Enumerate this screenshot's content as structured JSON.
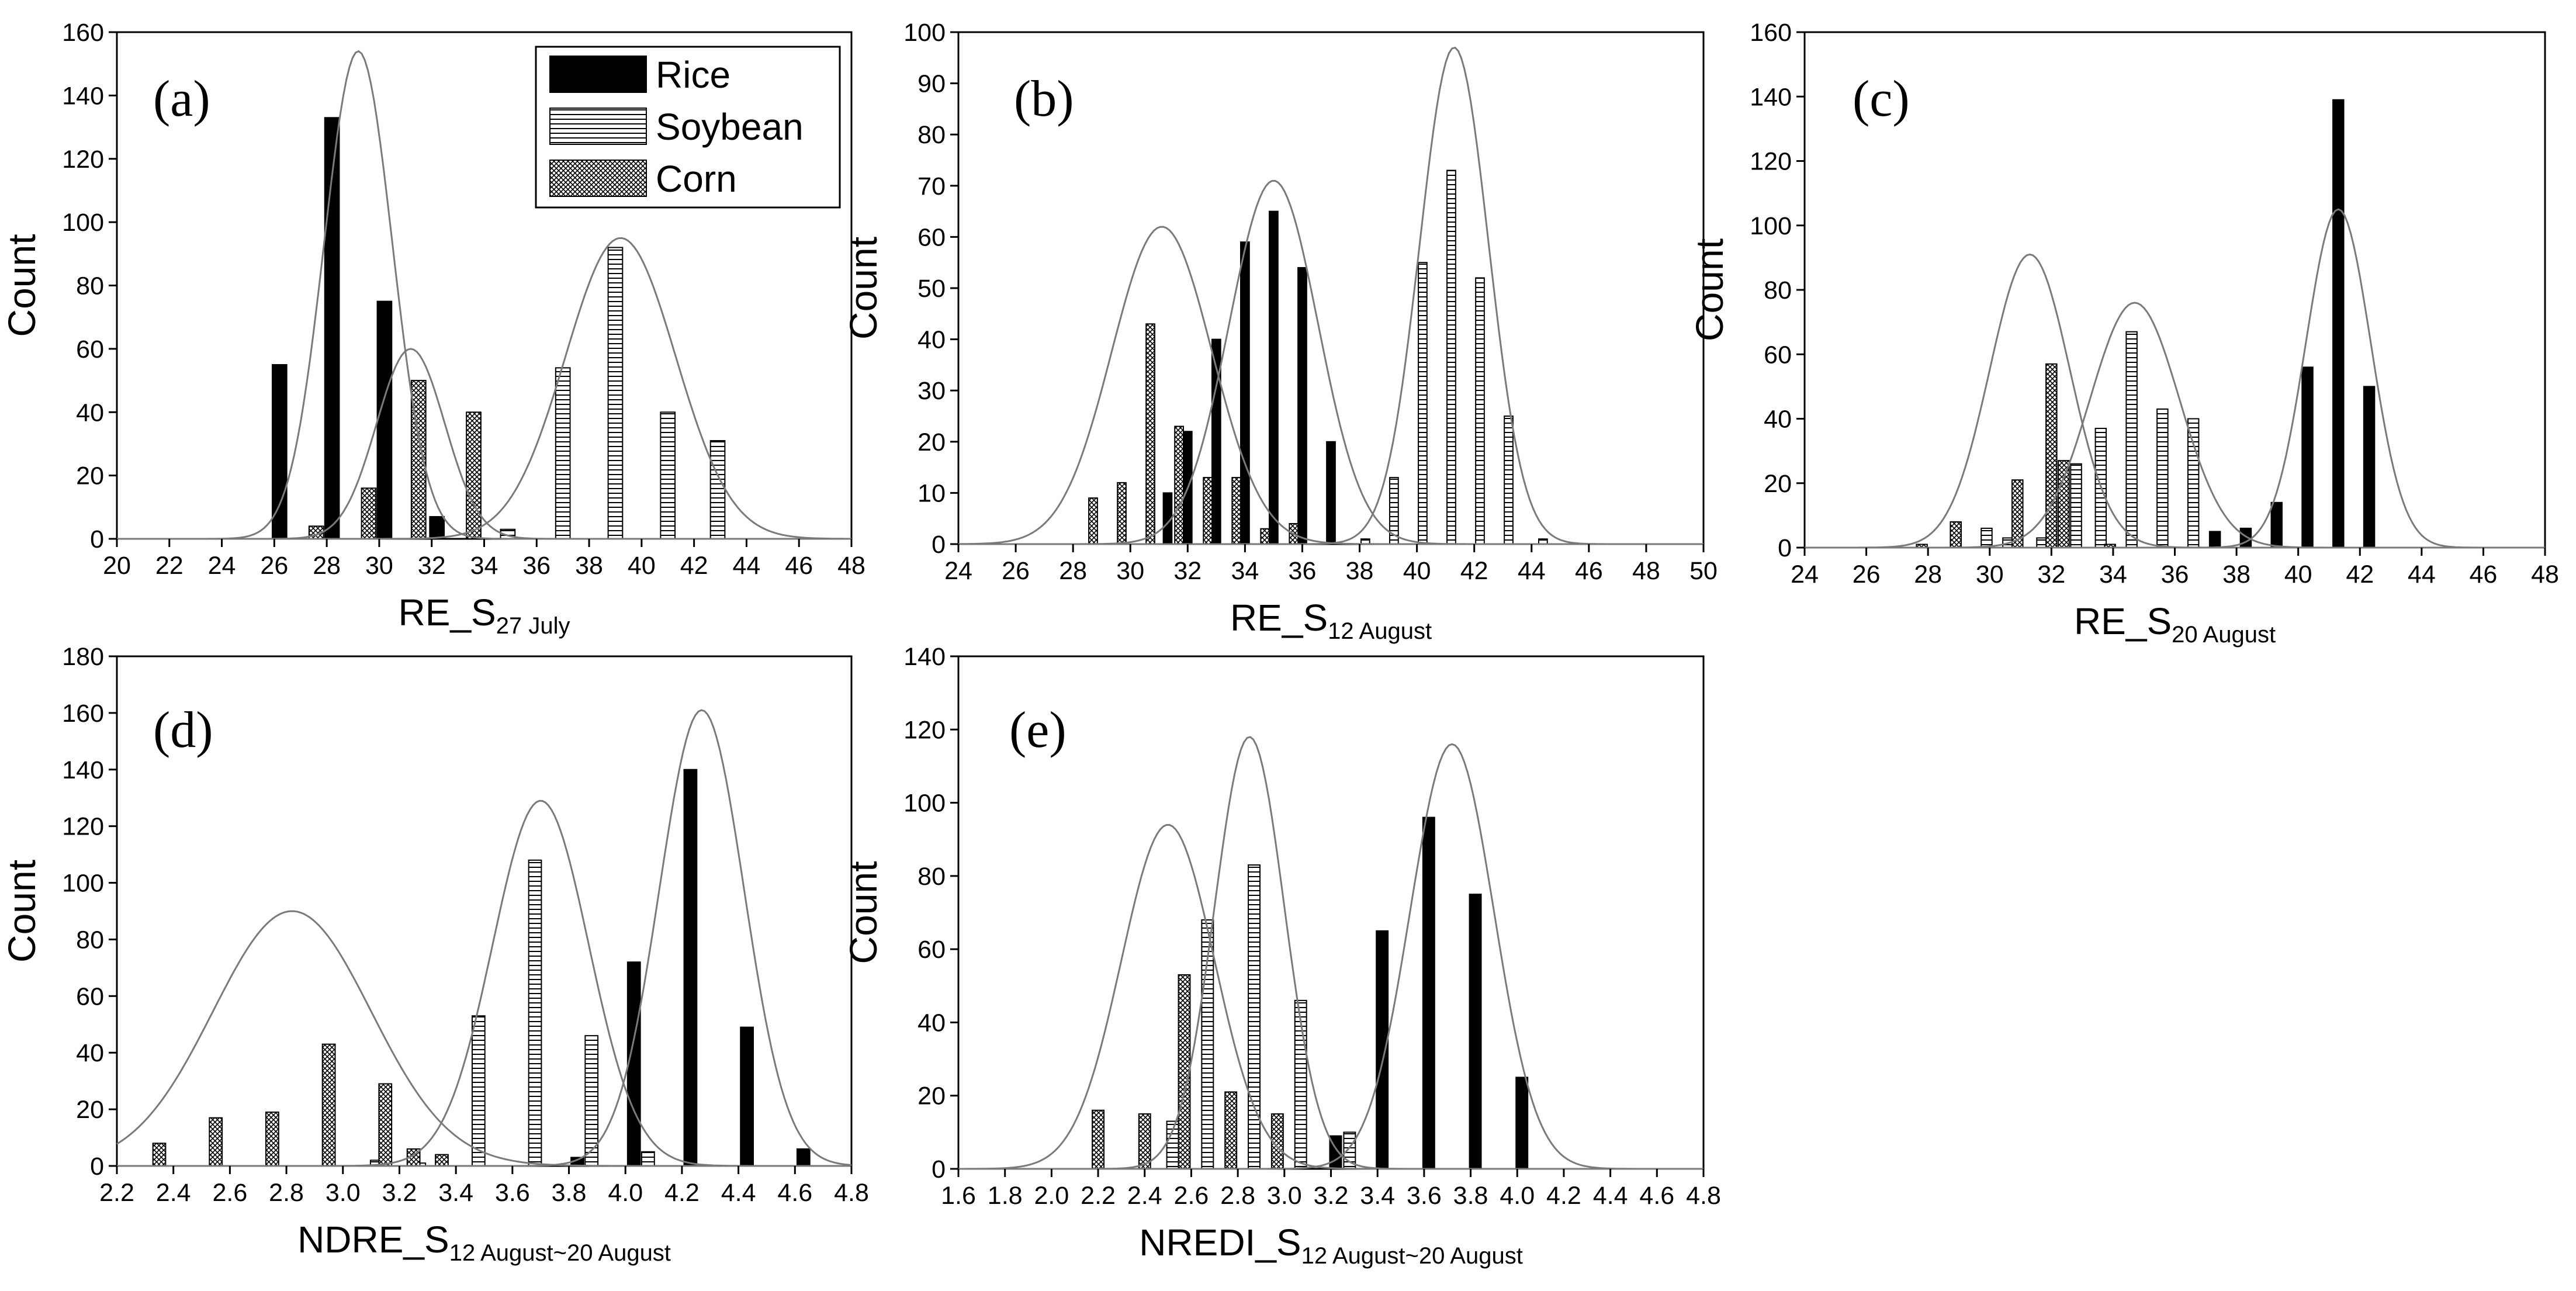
{
  "figure": {
    "legend": [
      {
        "name": "Rice",
        "pattern": "solid"
      },
      {
        "name": "Soybean",
        "pattern": "horizontal-lines"
      },
      {
        "name": "Corn",
        "pattern": "crosshatch"
      }
    ],
    "colors": {
      "ink": "#000000",
      "curve": "#7a7a7a",
      "background": "#ffffff"
    }
  },
  "chart_data": [
    {
      "id": "a",
      "type": "bar",
      "panel_label": "(a)",
      "ylabel": "Count",
      "xlabel_main": "RE_S",
      "xlabel_sub": "27 July",
      "xlim": [
        20,
        48
      ],
      "ylim": [
        0,
        160
      ],
      "xticks": [
        20,
        22,
        24,
        26,
        28,
        30,
        32,
        34,
        36,
        38,
        40,
        42,
        44,
        46,
        48
      ],
      "yticks": [
        0,
        20,
        40,
        60,
        80,
        100,
        120,
        140,
        160
      ],
      "xtick_labels": [
        "20",
        "22",
        "24",
        "26",
        "28",
        "30",
        "32",
        "34",
        "36",
        "38",
        "40",
        "42",
        "44",
        "46",
        "48"
      ],
      "ytick_labels": [
        "0",
        "20",
        "40",
        "60",
        "80",
        "100",
        "120",
        "140",
        "160"
      ],
      "bar_width": 0.55,
      "series": [
        {
          "name": "Rice",
          "bars": [
            {
              "x": 26.2,
              "y": 55
            },
            {
              "x": 28.2,
              "y": 133
            },
            {
              "x": 30.2,
              "y": 75
            },
            {
              "x": 32.2,
              "y": 7
            }
          ]
        },
        {
          "name": "Soybean",
          "bars": [
            {
              "x": 34.9,
              "y": 3
            },
            {
              "x": 37.0,
              "y": 54
            },
            {
              "x": 39.0,
              "y": 92
            },
            {
              "x": 41.0,
              "y": 40
            },
            {
              "x": 42.9,
              "y": 31
            }
          ]
        },
        {
          "name": "Corn",
          "bars": [
            {
              "x": 27.6,
              "y": 4
            },
            {
              "x": 29.6,
              "y": 16
            },
            {
              "x": 31.5,
              "y": 50
            },
            {
              "x": 33.6,
              "y": 40
            }
          ]
        }
      ],
      "curves": [
        {
          "series": "Rice",
          "mean": 29.2,
          "sd": 1.3,
          "peak": 154
        },
        {
          "series": "Corn",
          "mean": 31.2,
          "sd": 1.3,
          "peak": 60
        },
        {
          "series": "Soybean",
          "mean": 39.2,
          "sd": 2.1,
          "peak": 95
        }
      ]
    },
    {
      "id": "b",
      "type": "bar",
      "panel_label": "(b)",
      "ylabel": "Count",
      "xlabel_main": "RE_S",
      "xlabel_sub": "12 August",
      "xlim": [
        24,
        50
      ],
      "ylim": [
        0,
        100
      ],
      "xticks": [
        24,
        26,
        28,
        30,
        32,
        34,
        36,
        38,
        40,
        42,
        44,
        46,
        48,
        50
      ],
      "yticks": [
        0,
        10,
        20,
        30,
        40,
        50,
        60,
        70,
        80,
        90,
        100
      ],
      "xtick_labels": [
        "24",
        "26",
        "28",
        "30",
        "32",
        "34",
        "36",
        "38",
        "40",
        "42",
        "44",
        "46",
        "48",
        "50"
      ],
      "ytick_labels": [
        "0",
        "10",
        "20",
        "30",
        "40",
        "50",
        "60",
        "70",
        "80",
        "90",
        "100"
      ],
      "bar_width": 0.3,
      "series": [
        {
          "name": "Rice",
          "bars": [
            {
              "x": 31.3,
              "y": 10
            },
            {
              "x": 32.0,
              "y": 22
            },
            {
              "x": 33.0,
              "y": 40
            },
            {
              "x": 34.0,
              "y": 59
            },
            {
              "x": 35.0,
              "y": 65
            },
            {
              "x": 36.0,
              "y": 54
            },
            {
              "x": 37.0,
              "y": 20
            }
          ]
        },
        {
          "name": "Soybean",
          "bars": [
            {
              "x": 38.2,
              "y": 1
            },
            {
              "x": 39.2,
              "y": 13
            },
            {
              "x": 40.2,
              "y": 55
            },
            {
              "x": 41.2,
              "y": 73
            },
            {
              "x": 42.2,
              "y": 52
            },
            {
              "x": 43.2,
              "y": 25
            },
            {
              "x": 44.4,
              "y": 1
            }
          ]
        },
        {
          "name": "Corn",
          "bars": [
            {
              "x": 28.7,
              "y": 9
            },
            {
              "x": 29.7,
              "y": 12
            },
            {
              "x": 30.7,
              "y": 43
            },
            {
              "x": 31.7,
              "y": 23
            },
            {
              "x": 32.7,
              "y": 13
            },
            {
              "x": 33.7,
              "y": 13
            },
            {
              "x": 34.7,
              "y": 3
            },
            {
              "x": 35.7,
              "y": 4
            }
          ]
        }
      ],
      "curves": [
        {
          "series": "Corn",
          "mean": 31.1,
          "sd": 1.75,
          "peak": 62
        },
        {
          "series": "Rice",
          "mean": 35.0,
          "sd": 1.55,
          "peak": 71
        },
        {
          "series": "Soybean",
          "mean": 41.3,
          "sd": 1.2,
          "peak": 97
        }
      ]
    },
    {
      "id": "c",
      "type": "bar",
      "panel_label": "(c)",
      "ylabel": "Count",
      "xlabel_main": "RE_S",
      "xlabel_sub": "20 August",
      "xlim": [
        24,
        48
      ],
      "ylim": [
        0,
        160
      ],
      "xticks": [
        24,
        26,
        28,
        30,
        32,
        34,
        36,
        38,
        40,
        42,
        44,
        46,
        48
      ],
      "yticks": [
        0,
        20,
        40,
        60,
        80,
        100,
        120,
        140,
        160
      ],
      "xtick_labels": [
        "24",
        "26",
        "28",
        "30",
        "32",
        "34",
        "36",
        "38",
        "40",
        "42",
        "44",
        "46",
        "48"
      ],
      "ytick_labels": [
        "0",
        "20",
        "40",
        "60",
        "80",
        "100",
        "120",
        "140",
        "160"
      ],
      "bar_width": 0.35,
      "series": [
        {
          "name": "Rice",
          "bars": [
            {
              "x": 37.3,
              "y": 5
            },
            {
              "x": 38.3,
              "y": 6
            },
            {
              "x": 39.3,
              "y": 14
            },
            {
              "x": 40.3,
              "y": 56
            },
            {
              "x": 41.3,
              "y": 139
            },
            {
              "x": 42.3,
              "y": 50
            }
          ]
        },
        {
          "name": "Soybean",
          "bars": [
            {
              "x": 29.9,
              "y": 6
            },
            {
              "x": 30.6,
              "y": 3
            },
            {
              "x": 31.7,
              "y": 3
            },
            {
              "x": 32.8,
              "y": 26
            },
            {
              "x": 33.6,
              "y": 37
            },
            {
              "x": 34.6,
              "y": 67
            },
            {
              "x": 35.6,
              "y": 43
            },
            {
              "x": 36.6,
              "y": 40
            }
          ]
        },
        {
          "name": "Corn",
          "bars": [
            {
              "x": 27.8,
              "y": 1
            },
            {
              "x": 28.9,
              "y": 8
            },
            {
              "x": 30.9,
              "y": 21
            },
            {
              "x": 32.0,
              "y": 57
            },
            {
              "x": 32.4,
              "y": 27
            },
            {
              "x": 33.9,
              "y": 1
            }
          ]
        }
      ],
      "curves": [
        {
          "series": "Corn",
          "mean": 31.3,
          "sd": 1.3,
          "peak": 91
        },
        {
          "series": "Soybean",
          "mean": 34.7,
          "sd": 1.45,
          "peak": 76
        },
        {
          "series": "Rice",
          "mean": 41.3,
          "sd": 1.05,
          "peak": 105
        }
      ]
    },
    {
      "id": "d",
      "type": "bar",
      "panel_label": "(d)",
      "ylabel": "Count",
      "xlabel_main": "NDRE_S",
      "xlabel_sub": "12 August~20 August",
      "xlim": [
        2.2,
        4.8
      ],
      "ylim": [
        0,
        180
      ],
      "xticks": [
        2.2,
        2.4,
        2.6,
        2.8,
        3.0,
        3.2,
        3.4,
        3.6,
        3.8,
        4.0,
        4.2,
        4.4,
        4.6,
        4.8
      ],
      "yticks": [
        0,
        20,
        40,
        60,
        80,
        100,
        120,
        140,
        160,
        180
      ],
      "xtick_labels": [
        "2.2",
        "2.4",
        "2.6",
        "2.8",
        "3.0",
        "3.2",
        "3.4",
        "3.6",
        "3.8",
        "4.0",
        "4.2",
        "4.4",
        "4.6",
        "4.8"
      ],
      "ytick_labels": [
        "0",
        "20",
        "40",
        "60",
        "80",
        "100",
        "120",
        "140",
        "160",
        "180"
      ],
      "bar_width": 0.045,
      "series": [
        {
          "name": "Rice",
          "bars": [
            {
              "x": 3.83,
              "y": 3
            },
            {
              "x": 4.03,
              "y": 72
            },
            {
              "x": 4.23,
              "y": 140
            },
            {
              "x": 4.43,
              "y": 49
            },
            {
              "x": 4.63,
              "y": 6
            }
          ]
        },
        {
          "name": "Soybean",
          "bars": [
            {
              "x": 3.12,
              "y": 2
            },
            {
              "x": 3.27,
              "y": 1
            },
            {
              "x": 3.48,
              "y": 53
            },
            {
              "x": 3.68,
              "y": 108
            },
            {
              "x": 3.88,
              "y": 46
            },
            {
              "x": 4.08,
              "y": 5
            }
          ]
        },
        {
          "name": "Corn",
          "bars": [
            {
              "x": 2.35,
              "y": 8
            },
            {
              "x": 2.55,
              "y": 17
            },
            {
              "x": 2.75,
              "y": 19
            },
            {
              "x": 2.95,
              "y": 43
            },
            {
              "x": 3.15,
              "y": 29
            },
            {
              "x": 3.25,
              "y": 6
            },
            {
              "x": 3.35,
              "y": 4
            }
          ]
        }
      ],
      "curves": [
        {
          "series": "Corn",
          "mean": 2.82,
          "sd": 0.28,
          "peak": 90
        },
        {
          "series": "Soybean",
          "mean": 3.7,
          "sd": 0.17,
          "peak": 129
        },
        {
          "series": "Rice",
          "mean": 4.27,
          "sd": 0.15,
          "peak": 161
        }
      ]
    },
    {
      "id": "e",
      "type": "bar",
      "panel_label": "(e)",
      "ylabel": "Count",
      "xlabel_main": "NREDI_S",
      "xlabel_sub": "12 August~20 August",
      "xlim": [
        1.6,
        4.8
      ],
      "ylim": [
        0,
        140
      ],
      "xticks": [
        1.6,
        1.8,
        2.0,
        2.2,
        2.4,
        2.6,
        2.8,
        3.0,
        3.2,
        3.4,
        3.6,
        3.8,
        4.0,
        4.2,
        4.4,
        4.6,
        4.8
      ],
      "yticks": [
        0,
        20,
        40,
        60,
        80,
        100,
        120,
        140
      ],
      "xtick_labels": [
        "1.6",
        "1.8",
        "2.0",
        "2.2",
        "2.4",
        "2.6",
        "2.8",
        "3.0",
        "3.2",
        "3.4",
        "3.6",
        "3.8",
        "4.0",
        "4.2",
        "4.4",
        "4.6",
        "4.8"
      ],
      "ytick_labels": [
        "0",
        "20",
        "40",
        "60",
        "80",
        "100",
        "120",
        "140"
      ],
      "bar_width": 0.05,
      "series": [
        {
          "name": "Rice",
          "bars": [
            {
              "x": 3.22,
              "y": 9
            },
            {
              "x": 3.42,
              "y": 65
            },
            {
              "x": 3.62,
              "y": 96
            },
            {
              "x": 3.82,
              "y": 75
            },
            {
              "x": 4.02,
              "y": 25
            }
          ]
        },
        {
          "name": "Soybean",
          "bars": [
            {
              "x": 2.52,
              "y": 13
            },
            {
              "x": 2.67,
              "y": 68
            },
            {
              "x": 2.87,
              "y": 83
            },
            {
              "x": 3.07,
              "y": 46
            },
            {
              "x": 3.28,
              "y": 10
            }
          ]
        },
        {
          "name": "Corn",
          "bars": [
            {
              "x": 2.2,
              "y": 16
            },
            {
              "x": 2.4,
              "y": 15
            },
            {
              "x": 2.57,
              "y": 53
            },
            {
              "x": 2.77,
              "y": 21
            },
            {
              "x": 2.97,
              "y": 15
            }
          ]
        }
      ],
      "curves": [
        {
          "series": "Corn",
          "mean": 2.5,
          "sd": 0.2,
          "peak": 94
        },
        {
          "series": "Soybean",
          "mean": 2.85,
          "sd": 0.15,
          "peak": 118
        },
        {
          "series": "Rice",
          "mean": 3.72,
          "sd": 0.18,
          "peak": 116
        }
      ]
    }
  ]
}
